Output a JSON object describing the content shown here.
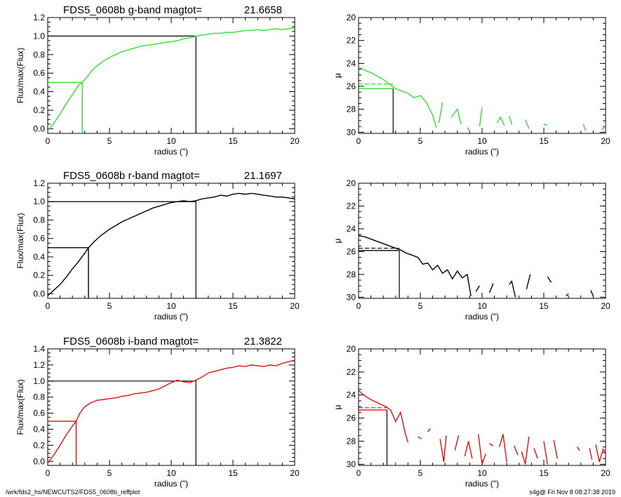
{
  "footer": {
    "left": "/wrk/fds2_hs/NEWCUTS2/FDS5_0608b_reffplot",
    "right": "s4g@  Fri Nov  8 08:27:38 2019"
  },
  "chart_data": [
    {
      "type": "line",
      "panel": "growth-curve",
      "band": "g",
      "title_prefix": "FDS5_0608b g-band  magtot=",
      "title_value": "21.6658",
      "xlabel": "radius (\")",
      "ylabel": "Flux/max(Flux)",
      "xlim": [
        0,
        20
      ],
      "ylim": [
        -0.05,
        1.2
      ],
      "xticks": [
        0,
        5,
        10,
        15,
        20
      ],
      "yticks": [
        0.0,
        0.2,
        0.4,
        0.6,
        0.8,
        1.0,
        1.2
      ],
      "color": "#33dd33",
      "series": [
        {
          "x": [
            0,
            0.5,
            1,
            1.5,
            2,
            2.5,
            2.8,
            3.2,
            3.6,
            4,
            4.5,
            5,
            5.5,
            6,
            6.5,
            7,
            7.5,
            8,
            8.5,
            9,
            9.5,
            10,
            10.5,
            11,
            11.5,
            12,
            12.5,
            13,
            13.5,
            14,
            14.5,
            15,
            15.5,
            16,
            16.5,
            17,
            17.5,
            18,
            18.5,
            19,
            19.5,
            20
          ],
          "y": [
            -0.02,
            0.06,
            0.16,
            0.27,
            0.37,
            0.47,
            0.5,
            0.56,
            0.63,
            0.68,
            0.73,
            0.77,
            0.8,
            0.83,
            0.85,
            0.87,
            0.89,
            0.9,
            0.91,
            0.92,
            0.93,
            0.94,
            0.95,
            0.97,
            0.98,
            1.0,
            1.01,
            1.02,
            1.03,
            1.03,
            1.04,
            1.04,
            1.05,
            1.06,
            1.06,
            1.07,
            1.06,
            1.07,
            1.08,
            1.07,
            1.08,
            1.09
          ]
        }
      ],
      "reff": {
        "x": 2.8,
        "y": 0.5,
        "color": "#33dd33"
      },
      "rtot": {
        "x": 12,
        "y": 1.0,
        "color": "#000000"
      }
    },
    {
      "type": "line",
      "panel": "surface-brightness",
      "band": "g",
      "ylabel": "μ",
      "xlabel": "radius (\")",
      "xlim": [
        0,
        20
      ],
      "ylim": [
        30.1,
        20
      ],
      "xticks": [
        0,
        5,
        10,
        15,
        20
      ],
      "yticks": [
        20,
        22,
        24,
        26,
        28,
        30
      ],
      "color": "#33dd33",
      "segments": [
        {
          "x": [
            0,
            0.5,
            1,
            1.5,
            2,
            2.5,
            3,
            3.5,
            4,
            4.5,
            5,
            5.5,
            6,
            6.3
          ],
          "y": [
            24.3,
            24.6,
            24.8,
            25.1,
            25.4,
            25.8,
            26.2,
            26.4,
            26.6,
            27.0,
            26.8,
            27.4,
            28.5,
            29.6
          ]
        },
        {
          "x": [
            6.5,
            6.8
          ],
          "y": [
            29.2,
            27.4
          ]
        },
        {
          "x": [
            7.5,
            8.0,
            8.3
          ],
          "y": [
            28.7,
            28.0,
            29.3
          ]
        },
        {
          "x": [
            8.8,
            9.0
          ],
          "y": [
            29.6,
            29.9
          ]
        },
        {
          "x": [
            9.8,
            10.0
          ],
          "y": [
            29.5,
            27.8
          ]
        },
        {
          "x": [
            11.2,
            11.5,
            11.8
          ],
          "y": [
            29.2,
            28.7,
            29.4
          ]
        },
        {
          "x": [
            12.2,
            12.4
          ],
          "y": [
            28.6,
            29.3
          ]
        },
        {
          "x": [
            13.5,
            13.8
          ],
          "y": [
            28.9,
            29.7
          ]
        },
        {
          "x": [
            15.0,
            15.3
          ],
          "y": [
            29.3,
            29.4
          ]
        },
        {
          "x": [
            18.2,
            18.4
          ],
          "y": [
            29.3,
            29.9
          ]
        },
        {
          "x": [
            19.7,
            20.0
          ],
          "y": [
            29.8,
            29.4
          ]
        }
      ],
      "mu_eff": 26.2,
      "mu_mean": 25.8,
      "reff": 2.8
    },
    {
      "type": "line",
      "panel": "growth-curve",
      "band": "r",
      "title_prefix": "FDS5_0608b r-band  magtot=",
      "title_value": "21.1697",
      "xlabel": "radius (\")",
      "ylabel": "Flux/max(Flux)",
      "xlim": [
        0,
        20
      ],
      "ylim": [
        -0.05,
        1.2
      ],
      "xticks": [
        0,
        5,
        10,
        15,
        20
      ],
      "yticks": [
        0.0,
        0.2,
        0.4,
        0.6,
        0.8,
        1.0,
        1.2
      ],
      "color": "#000000",
      "series": [
        {
          "x": [
            0,
            0.5,
            1,
            1.5,
            2,
            2.5,
            3,
            3.3,
            3.8,
            4.3,
            5,
            5.5,
            6,
            6.5,
            7,
            7.5,
            8,
            8.5,
            9,
            9.5,
            10,
            10.5,
            11,
            11.5,
            12,
            12.5,
            13,
            13.5,
            14,
            14.5,
            15,
            15.5,
            16,
            16.5,
            17,
            17.5,
            18,
            18.5,
            19,
            19.5,
            20
          ],
          "y": [
            -0.02,
            0.04,
            0.1,
            0.18,
            0.27,
            0.35,
            0.44,
            0.5,
            0.57,
            0.63,
            0.7,
            0.74,
            0.78,
            0.81,
            0.84,
            0.87,
            0.9,
            0.93,
            0.95,
            0.97,
            0.99,
            1.0,
            1.01,
            1.0,
            1.01,
            1.03,
            1.04,
            1.05,
            1.07,
            1.06,
            1.08,
            1.09,
            1.08,
            1.09,
            1.08,
            1.07,
            1.06,
            1.05,
            1.05,
            1.04,
            1.03
          ]
        }
      ],
      "reff": {
        "x": 3.3,
        "y": 0.5,
        "color": "#000000"
      },
      "rtot": {
        "x": 12,
        "y": 1.0,
        "color": "#000000"
      }
    },
    {
      "type": "line",
      "panel": "surface-brightness",
      "band": "r",
      "ylabel": "μ",
      "xlabel": "radius (\")",
      "xlim": [
        0,
        20
      ],
      "ylim": [
        30.1,
        20
      ],
      "xticks": [
        0,
        5,
        10,
        15,
        20
      ],
      "yticks": [
        20,
        22,
        24,
        26,
        28,
        30
      ],
      "color": "#000000",
      "segments": [
        {
          "x": [
            0,
            0.5,
            1,
            1.5,
            2,
            2.5,
            3,
            3.3,
            3.8,
            4.3,
            4.8,
            5.2,
            5.6,
            6.0,
            6.4,
            6.8,
            7.2,
            7.6,
            8.0,
            8.4,
            8.8,
            9.1
          ],
          "y": [
            24.6,
            24.7,
            24.9,
            25.1,
            25.3,
            25.5,
            25.7,
            25.8,
            26.1,
            26.3,
            26.5,
            27.1,
            27.0,
            27.6,
            27.2,
            27.9,
            27.6,
            28.4,
            27.7,
            28.3,
            28.0,
            29.9
          ]
        },
        {
          "x": [
            9.5,
            9.8
          ],
          "y": [
            29.5,
            29.0
          ]
        },
        {
          "x": [
            10.6,
            10.9
          ],
          "y": [
            29.6,
            28.8
          ]
        },
        {
          "x": [
            12.2,
            12.4,
            12.7
          ],
          "y": [
            28.9,
            28.6,
            30.0
          ]
        },
        {
          "x": [
            13.6,
            13.9
          ],
          "y": [
            29.3,
            28.0
          ]
        },
        {
          "x": [
            15.3,
            15.6
          ],
          "y": [
            28.2,
            28.7
          ]
        },
        {
          "x": [
            16.8,
            17.0
          ],
          "y": [
            29.9,
            29.7
          ]
        },
        {
          "x": [
            18.8,
            19.0
          ],
          "y": [
            29.4,
            29.9
          ]
        }
      ],
      "mu_eff": 25.9,
      "mu_mean": 25.7,
      "reff": 3.3
    },
    {
      "type": "line",
      "panel": "growth-curve",
      "band": "i",
      "title_prefix": "FDS5_0608b i-band  magtot=",
      "title_value": "21.3822",
      "xlabel": "radius (\")",
      "ylabel": "Flux/max(Flux)",
      "xlim": [
        0,
        20
      ],
      "ylim": [
        -0.05,
        1.4
      ],
      "xticks": [
        0,
        5,
        10,
        15,
        20
      ],
      "yticks": [
        0.0,
        0.2,
        0.4,
        0.6,
        0.8,
        1.0,
        1.2,
        1.4
      ],
      "color": "#dd1111",
      "series": [
        {
          "x": [
            0,
            0.5,
            1,
            1.5,
            2,
            2.3,
            2.6,
            3,
            3.5,
            4,
            4.5,
            5,
            5.5,
            6,
            6.5,
            7,
            7.5,
            8,
            8.5,
            9,
            9.5,
            10,
            10.5,
            11,
            11.5,
            12,
            12.5,
            13,
            13.5,
            14,
            14.5,
            15,
            15.5,
            16,
            16.5,
            17,
            17.5,
            18,
            18.5,
            19,
            19.5,
            20
          ],
          "y": [
            -0.02,
            0.08,
            0.2,
            0.33,
            0.44,
            0.5,
            0.6,
            0.68,
            0.73,
            0.76,
            0.77,
            0.78,
            0.79,
            0.81,
            0.82,
            0.84,
            0.85,
            0.86,
            0.88,
            0.9,
            0.94,
            0.98,
            1.01,
            0.99,
            0.98,
            1.01,
            1.05,
            1.1,
            1.12,
            1.14,
            1.16,
            1.17,
            1.19,
            1.18,
            1.2,
            1.19,
            1.18,
            1.2,
            1.19,
            1.22,
            1.24,
            1.26
          ]
        }
      ],
      "reff": {
        "x": 2.3,
        "y": 0.5,
        "color": "#dd1111"
      },
      "rtot": {
        "x": 12,
        "y": 1.0,
        "color": "#000000"
      }
    },
    {
      "type": "line",
      "panel": "surface-brightness",
      "band": "i",
      "ylabel": "μ",
      "xlabel": "radius (\")",
      "xlim": [
        0,
        20
      ],
      "ylim": [
        30.1,
        20
      ],
      "xticks": [
        0,
        5,
        10,
        15,
        20
      ],
      "yticks": [
        20,
        22,
        24,
        26,
        28,
        30
      ],
      "color": "#dd1111",
      "segments": [
        {
          "x": [
            0,
            0.3,
            0.7,
            1.0,
            1.4,
            1.8,
            2.2,
            2.6,
            3.0,
            3.4,
            3.8,
            4.0
          ],
          "y": [
            23.6,
            23.9,
            24.2,
            24.4,
            24.6,
            24.8,
            25.0,
            25.3,
            26.3,
            25.5,
            27.4,
            28.1
          ]
        },
        {
          "x": [
            4.8,
            5.1
          ],
          "y": [
            27.6,
            27.8
          ]
        },
        {
          "x": [
            5.6,
            5.8
          ],
          "y": [
            27.2,
            26.9
          ]
        },
        {
          "x": [
            6.6,
            6.9,
            7.1
          ],
          "y": [
            27.8,
            29.8,
            27.5
          ]
        },
        {
          "x": [
            7.8,
            8.1
          ],
          "y": [
            28.8,
            27.5
          ]
        },
        {
          "x": [
            8.6,
            8.9,
            9.2
          ],
          "y": [
            29.3,
            28.0,
            29.5
          ]
        },
        {
          "x": [
            9.7,
            10.0,
            10.3
          ],
          "y": [
            27.4,
            30.0,
            29.1
          ]
        },
        {
          "x": [
            10.6,
            10.9
          ],
          "y": [
            28.2,
            28.4
          ]
        },
        {
          "x": [
            11.4,
            11.7,
            12.0
          ],
          "y": [
            28.5,
            27.4,
            29.8
          ]
        },
        {
          "x": [
            12.6,
            12.9
          ],
          "y": [
            28.4,
            29.2
          ]
        },
        {
          "x": [
            13.2,
            13.5,
            13.8
          ],
          "y": [
            28.9,
            30.0,
            27.6
          ]
        },
        {
          "x": [
            14.2,
            14.5
          ],
          "y": [
            28.6,
            29.5
          ]
        },
        {
          "x": [
            15.0,
            15.3
          ],
          "y": [
            28.0,
            30.0
          ]
        },
        {
          "x": [
            15.8,
            16.1
          ],
          "y": [
            27.9,
            29.5
          ]
        },
        {
          "x": [
            17.7,
            17.9
          ],
          "y": [
            28.5,
            28.8
          ]
        },
        {
          "x": [
            18.7,
            18.9
          ],
          "y": [
            28.6,
            29.6
          ]
        },
        {
          "x": [
            19.2,
            19.5,
            19.8,
            20.0
          ],
          "y": [
            28.3,
            29.8,
            28.7,
            29.1
          ]
        }
      ],
      "mu_eff": 25.3,
      "mu_mean": 25.1,
      "reff": 2.3
    }
  ]
}
